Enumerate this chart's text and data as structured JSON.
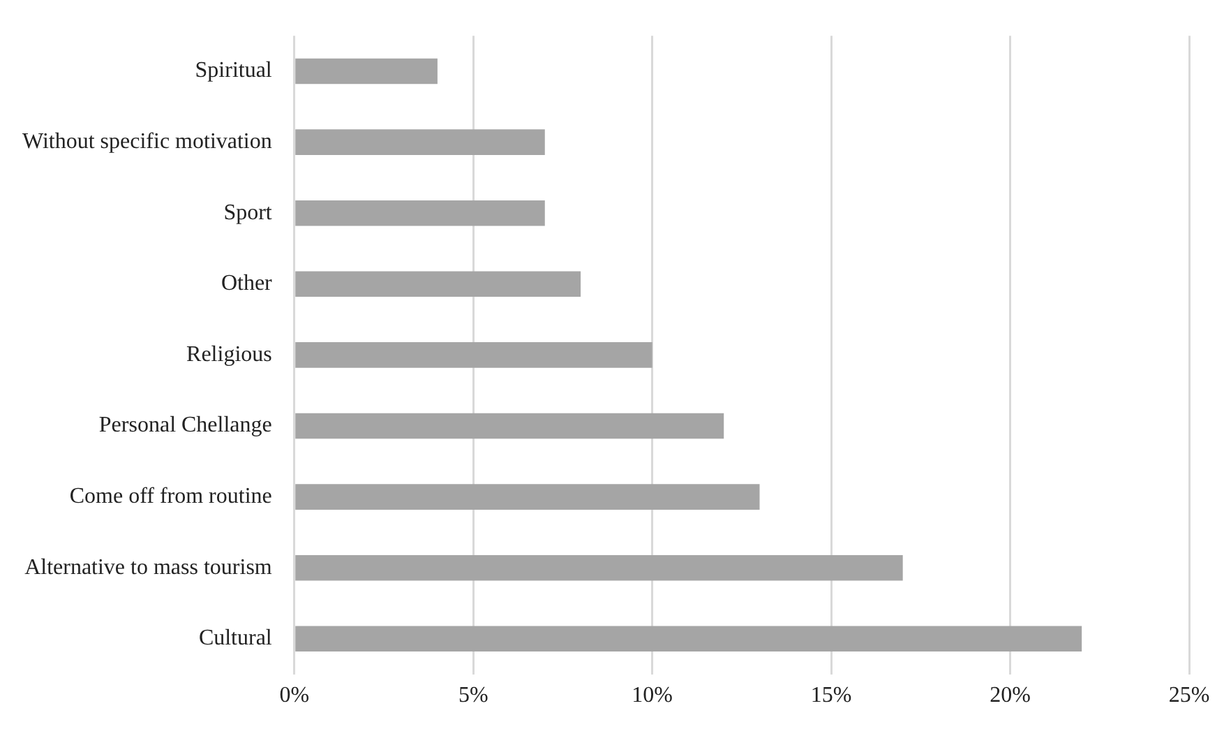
{
  "chart_data": {
    "type": "bar",
    "orientation": "horizontal",
    "categories": [
      "Spiritual",
      "Without specific motivation",
      "Sport",
      "Other",
      "Religious",
      "Personal Chellange",
      "Come off from routine",
      "Alternative to mass tourism",
      "Cultural"
    ],
    "values": [
      4,
      7,
      7,
      8,
      10,
      12,
      13,
      17,
      22
    ],
    "color": "#a5a5a5",
    "xlim": [
      0,
      25
    ],
    "xticks": [
      {
        "value": 0,
        "label": "0%"
      },
      {
        "value": 5,
        "label": "5%"
      },
      {
        "value": 10,
        "label": "10%"
      },
      {
        "value": 15,
        "label": "15%"
      },
      {
        "value": 20,
        "label": "20%"
      },
      {
        "value": 25,
        "label": "25%"
      }
    ],
    "grid": "x"
  }
}
